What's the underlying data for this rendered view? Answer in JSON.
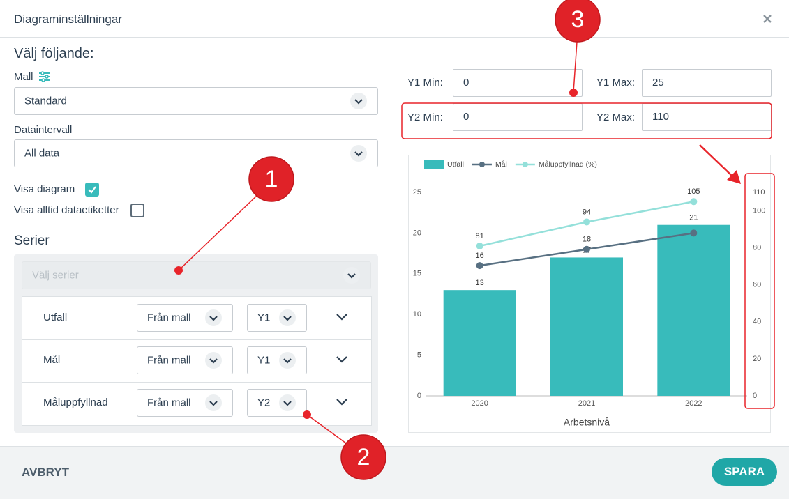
{
  "dialog": {
    "title": "Diagraminställningar",
    "heading": "Välj följande:",
    "template_label": "Mall",
    "template_value": "Standard",
    "interval_label": "Dataintervall",
    "interval_value": "All data",
    "show_chart": "Visa diagram",
    "show_chart_checked": true,
    "show_labels": "Visa alltid dataetiketter",
    "show_labels_checked": false,
    "series_title": "Serier",
    "series_placeholder": "Välj serier",
    "series": [
      {
        "name": "Utfall",
        "source": "Från mall",
        "axis": "Y1"
      },
      {
        "name": "Mål",
        "source": "Från mall",
        "axis": "Y1"
      },
      {
        "name": "Måluppfyllnad",
        "source": "Från mall",
        "axis": "Y2"
      }
    ],
    "y1_min_label": "Y1 Min:",
    "y1_min": 0,
    "y1_max_label": "Y1 Max:",
    "y1_max": 25,
    "y2_min_label": "Y2 Min:",
    "y2_min": 0,
    "y2_max_label": "Y2 Max:",
    "y2_max": 110,
    "cancel": "AVBRYT",
    "save": "SPARA",
    "callouts": [
      1,
      2,
      3
    ]
  },
  "chart_data": {
    "type": "combo",
    "xlabel": "Arbetsnivå",
    "categories": [
      "2020",
      "2021",
      "2022"
    ],
    "ylim": [
      0,
      25
    ],
    "yticks": [
      0,
      5,
      10,
      15,
      20,
      25
    ],
    "y2lim": [
      0,
      110
    ],
    "y2ticks": [
      0,
      20,
      40,
      60,
      80,
      100,
      110
    ],
    "series": [
      {
        "name": "Utfall",
        "type": "bar",
        "color": "#38bbbb",
        "values": [
          13,
          17,
          21
        ]
      },
      {
        "name": "Mål",
        "type": "line",
        "color": "#587082",
        "values": [
          16,
          18,
          20
        ],
        "value_labels": [
          "16",
          "18",
          null
        ]
      },
      {
        "name": "Måluppfyllnad (%)",
        "type": "line",
        "axis": "y2",
        "color": "#94e0da",
        "values": [
          81,
          94,
          105
        ]
      }
    ]
  }
}
